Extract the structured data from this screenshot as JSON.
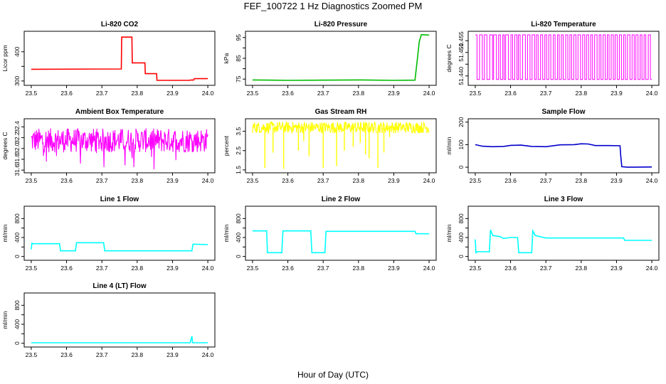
{
  "figure": {
    "title": "FEF_100722  1 Hz Diagnostics Zoomed PM",
    "xlabel": "Hour of Day (UTC)"
  },
  "chart_data": [
    {
      "type": "line",
      "title": "Li-820 CO2",
      "ylabel": "Licor ppm",
      "color": "#ff0000",
      "xlim": [
        23.48,
        24.02
      ],
      "ylim": [
        285,
        470
      ],
      "xticks": [
        "23.5",
        "23.6",
        "23.7",
        "23.8",
        "23.9",
        "24.0"
      ],
      "yticks": [
        300,
        350,
        400
      ],
      "ytick_labels": [
        "300",
        "",
        "400"
      ],
      "series": [
        {
          "x": [
            23.5,
            23.755,
            23.756,
            23.785,
            23.786,
            23.822,
            23.823,
            23.855,
            23.856,
            23.948,
            23.95,
            23.96,
            23.962,
            24.0
          ],
          "y": [
            340,
            341,
            450,
            450,
            362,
            362,
            325,
            325,
            302,
            302,
            303,
            303,
            308,
            308
          ]
        }
      ]
    },
    {
      "type": "line",
      "title": "Li-820 Pressure",
      "ylabel": "kPa",
      "color": "#00bb00",
      "xlim": [
        23.48,
        24.02
      ],
      "ylim": [
        72,
        98
      ],
      "xticks": [
        "23.5",
        "23.6",
        "23.7",
        "23.8",
        "23.9",
        "24.0"
      ],
      "yticks": [
        75,
        80,
        85,
        90,
        95
      ],
      "ytick_labels": [
        "75",
        "",
        "85",
        "",
        "95"
      ],
      "series": [
        {
          "x": [
            23.5,
            23.6,
            23.7,
            23.8,
            23.9,
            23.96,
            23.967,
            23.972,
            23.978,
            24.0
          ],
          "y": [
            74.6,
            74.4,
            74.5,
            74.6,
            74.4,
            74.5,
            85,
            93,
            96.4,
            96.2
          ]
        }
      ]
    },
    {
      "type": "line",
      "title": "Li-820 Temperature",
      "ylabel": "degrees C",
      "color": "#ff00ff",
      "xlim": [
        23.48,
        24.02
      ],
      "ylim": [
        51.436,
        51.459
      ],
      "xticks": [
        "23.5",
        "23.6",
        "23.7",
        "23.8",
        "23.9",
        "24.0"
      ],
      "yticks": [
        51.44,
        51.445,
        51.45,
        51.455
      ],
      "ytick_labels": [
        "51.440",
        "",
        "51.450",
        "51.455"
      ],
      "levels": [
        51.4385,
        51.4575
      ],
      "toggles": [
        23.505,
        23.512,
        23.52,
        23.526,
        23.533,
        23.541,
        23.549,
        23.552,
        23.56,
        23.566,
        23.571,
        23.578,
        23.582,
        23.586,
        23.594,
        23.601,
        23.606,
        23.612,
        23.618,
        23.622,
        23.627,
        23.634,
        23.642,
        23.648,
        23.655,
        23.661,
        23.668,
        23.673,
        23.678,
        23.685,
        23.691,
        23.697,
        23.702,
        23.708,
        23.714,
        23.721,
        23.726,
        23.733,
        23.738,
        23.744,
        23.749,
        23.756,
        23.762,
        23.768,
        23.773,
        23.779,
        23.785,
        23.791,
        23.798,
        23.804,
        23.81,
        23.815,
        23.821,
        23.827,
        23.832,
        23.838,
        23.845,
        23.851,
        23.856,
        23.862,
        23.868,
        23.874,
        23.879,
        23.885,
        23.891,
        23.896,
        23.902,
        23.908,
        23.914,
        23.92,
        23.925,
        23.931,
        23.938,
        23.944,
        23.95,
        23.955,
        23.961,
        23.967,
        23.972,
        23.978,
        23.983,
        23.99,
        23.996
      ]
    },
    {
      "type": "line",
      "title": "Ambient Box Temperature",
      "ylabel": "degrees C",
      "color": "#ff00ff",
      "xlim": [
        23.48,
        24.02
      ],
      "ylim": [
        31.55,
        32.55
      ],
      "xticks": [
        "23.5",
        "23.6",
        "23.7",
        "23.8",
        "23.9",
        "24.0"
      ],
      "yticks": [
        31.6,
        31.8,
        32.0,
        32.2,
        32.4
      ],
      "ytick_labels": [
        "31.6",
        "31.8",
        "32.0",
        "32.2",
        "32.4"
      ],
      "band": {
        "center": 32.15,
        "low": 31.95,
        "high": 32.4
      }
    },
    {
      "type": "line",
      "title": "Gas Stream RH",
      "ylabel": "percent",
      "color": "#ffff00",
      "xlim": [
        23.48,
        24.02
      ],
      "ylim": [
        1.35,
        4.15
      ],
      "xticks": [
        "23.5",
        "23.6",
        "23.7",
        "23.8",
        "23.9",
        "24.0"
      ],
      "yticks": [
        1.5,
        2.5,
        3.5
      ],
      "ytick_labels": [
        "1.5",
        "2.5",
        "3.5"
      ],
      "band": {
        "center": 3.7,
        "low": 3.4,
        "high": 4.0
      },
      "dips": [
        {
          "x": 23.535,
          "y": 1.6
        },
        {
          "x": 23.558,
          "y": 2.4
        },
        {
          "x": 23.588,
          "y": 1.55
        },
        {
          "x": 23.63,
          "y": 2.5
        },
        {
          "x": 23.645,
          "y": 3.0
        },
        {
          "x": 23.66,
          "y": 2.2
        },
        {
          "x": 23.7,
          "y": 1.6
        },
        {
          "x": 23.738,
          "y": 1.7
        },
        {
          "x": 23.76,
          "y": 2.5
        },
        {
          "x": 23.785,
          "y": 2.7
        },
        {
          "x": 23.805,
          "y": 2.9
        },
        {
          "x": 23.82,
          "y": 2.3
        },
        {
          "x": 23.83,
          "y": 2.1
        },
        {
          "x": 23.855,
          "y": 1.6
        },
        {
          "x": 23.872,
          "y": 2.4
        },
        {
          "x": 23.888,
          "y": 3.2
        }
      ]
    },
    {
      "type": "line",
      "title": "Sample Flow",
      "ylabel": "ml/min",
      "color": "#0000cc",
      "xlim": [
        23.48,
        24.02
      ],
      "ylim": [
        -25,
        215
      ],
      "xticks": [
        "23.5",
        "23.6",
        "23.7",
        "23.8",
        "23.9",
        "24.0"
      ],
      "yticks": [
        0,
        100,
        200
      ],
      "ytick_labels": [
        "0",
        "100",
        "200"
      ],
      "series": [
        {
          "x": [
            23.5,
            23.52,
            23.55,
            23.58,
            23.6,
            23.63,
            23.66,
            23.7,
            23.74,
            23.78,
            23.8,
            23.82,
            23.84,
            23.88,
            23.91,
            23.912,
            23.915,
            23.93,
            24.0
          ],
          "y": [
            100,
            93,
            91,
            92,
            97,
            98,
            92,
            91,
            99,
            100,
            104,
            103,
            96,
            96,
            95,
            50,
            2,
            0,
            1
          ]
        }
      ]
    },
    {
      "type": "line",
      "title": "Line 1 Flow",
      "ylabel": "ml/min",
      "color": "#00ffff",
      "xlim": [
        23.48,
        24.02
      ],
      "ylim": [
        -80,
        1060
      ],
      "xticks": [
        "23.5",
        "23.6",
        "23.7",
        "23.8",
        "23.9",
        "24.0"
      ],
      "yticks": [
        0,
        200,
        400,
        600,
        800
      ],
      "ytick_labels": [
        "0",
        "",
        "400",
        "",
        "800"
      ],
      "series": [
        {
          "x": [
            23.5,
            23.502,
            23.505,
            23.58,
            23.583,
            23.625,
            23.628,
            23.705,
            23.708,
            23.955,
            23.958,
            24.0
          ],
          "y": [
            150,
            280,
            270,
            270,
            120,
            120,
            290,
            290,
            120,
            120,
            260,
            250
          ]
        }
      ]
    },
    {
      "type": "line",
      "title": "Line 2 Flow",
      "ylabel": "ml/min",
      "color": "#00ffff",
      "xlim": [
        23.48,
        24.02
      ],
      "ylim": [
        -80,
        1060
      ],
      "xticks": [
        "23.5",
        "23.6",
        "23.7",
        "23.8",
        "23.9",
        "24.0"
      ],
      "yticks": [
        0,
        200,
        400,
        600,
        800
      ],
      "ytick_labels": [
        "0",
        "",
        "400",
        "",
        "800"
      ],
      "series": [
        {
          "x": [
            23.5,
            23.54,
            23.542,
            23.583,
            23.586,
            23.665,
            23.668,
            23.705,
            23.708,
            23.96,
            23.963,
            24.0
          ],
          "y": [
            540,
            540,
            80,
            80,
            540,
            540,
            80,
            80,
            530,
            530,
            480,
            480
          ]
        }
      ]
    },
    {
      "type": "line",
      "title": "Line 3 Flow",
      "ylabel": "ml/min",
      "color": "#00ffff",
      "xlim": [
        23.48,
        24.02
      ],
      "ylim": [
        -80,
        1060
      ],
      "xticks": [
        "23.5",
        "23.6",
        "23.7",
        "23.8",
        "23.9",
        "24.0"
      ],
      "yticks": [
        0,
        200,
        400,
        600,
        800
      ],
      "ytick_labels": [
        "0",
        "",
        "400",
        "",
        "800"
      ],
      "series": [
        {
          "x": [
            23.5,
            23.502,
            23.505,
            23.54,
            23.543,
            23.55,
            23.57,
            23.58,
            23.6,
            23.62,
            23.623,
            23.66,
            23.663,
            23.67,
            23.7,
            23.8,
            23.9,
            23.92,
            23.923,
            24.0
          ],
          "y": [
            360,
            80,
            100,
            100,
            560,
            440,
            420,
            380,
            400,
            400,
            80,
            80,
            540,
            440,
            390,
            390,
            390,
            390,
            340,
            340
          ]
        }
      ]
    },
    {
      "type": "line",
      "title": "Line 4 (LT) Flow",
      "ylabel": "ml/min",
      "color": "#00ffff",
      "xlim": [
        23.48,
        24.02
      ],
      "ylim": [
        -80,
        1060
      ],
      "xticks": [
        "23.5",
        "23.6",
        "23.7",
        "23.8",
        "23.9",
        "24.0"
      ],
      "yticks": [
        0,
        200,
        400,
        600,
        800
      ],
      "ytick_labels": [
        "0",
        "",
        "400",
        "",
        "800"
      ],
      "series": [
        {
          "x": [
            23.5,
            23.95,
            23.955,
            23.957,
            23.96,
            24.0
          ],
          "y": [
            10,
            10,
            150,
            10,
            10,
            10
          ]
        }
      ]
    }
  ]
}
